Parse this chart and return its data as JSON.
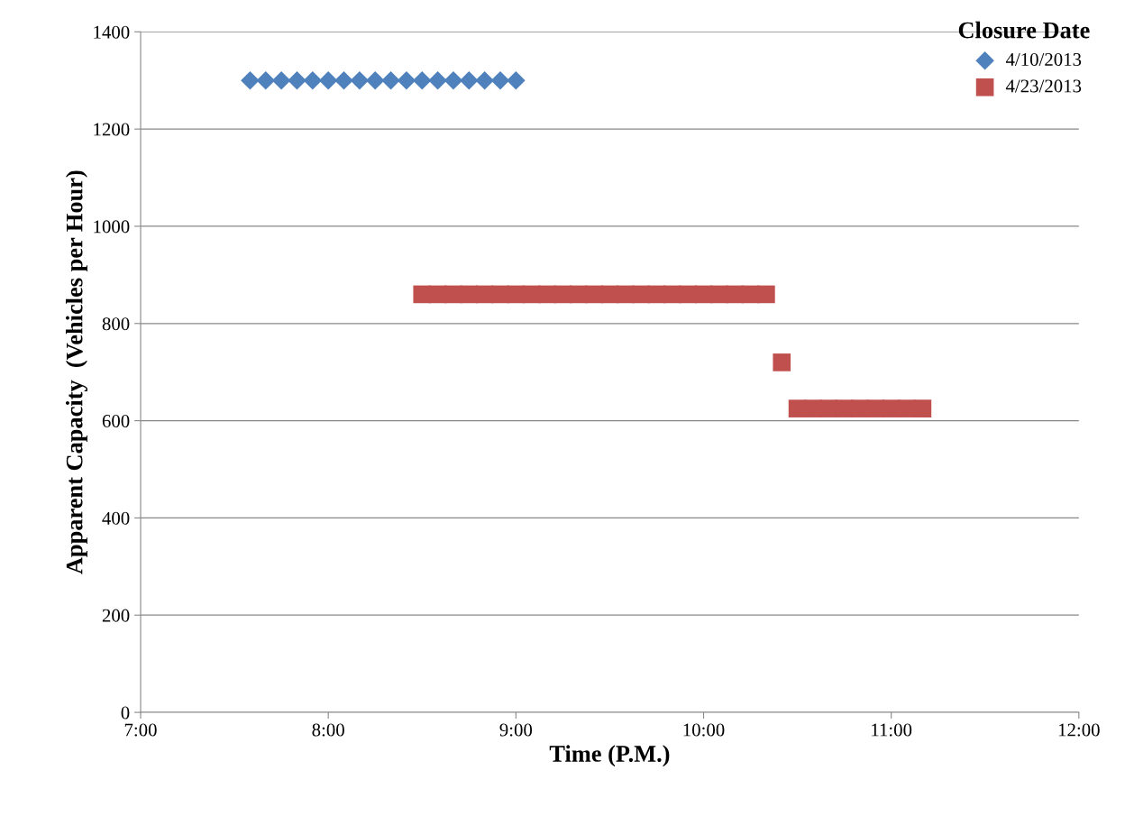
{
  "chart_data": {
    "type": "scatter",
    "xlabel": "Time (P.M.)",
    "ylabel": "Apparent Capacity  (Vehicles per Hour)",
    "legend_title": "Closure Date",
    "legend": "top right",
    "grid": "y",
    "xlim": [
      7,
      12
    ],
    "xticks": [
      {
        "value": 7,
        "label": "7:00"
      },
      {
        "value": 8,
        "label": "8:00"
      },
      {
        "value": 9,
        "label": "9:00"
      },
      {
        "value": 10,
        "label": "10:00"
      },
      {
        "value": 11,
        "label": "11:00"
      },
      {
        "value": 12,
        "label": "12:00"
      }
    ],
    "ylim": [
      0,
      1400
    ],
    "yticks": [
      0,
      200,
      400,
      600,
      800,
      1000,
      1200,
      1400
    ],
    "series": [
      {
        "name": "4/10/2013",
        "color": "#4f81bd",
        "marker": "diamond",
        "x": [
          7.5833,
          7.6667,
          7.75,
          7.8333,
          7.9167,
          8,
          8.0833,
          8.1667,
          8.25,
          8.3333,
          8.4167,
          8.5,
          8.5833,
          8.6667,
          8.75,
          8.8333,
          8.9167,
          9
        ],
        "values": [
          1300,
          1300,
          1300,
          1300,
          1300,
          1300,
          1300,
          1300,
          1300,
          1300,
          1300,
          1300,
          1300,
          1300,
          1300,
          1300,
          1300,
          1300
        ]
      },
      {
        "name": "4/23/2013",
        "color": "#c0504d",
        "marker": "square",
        "x": [
          8.5,
          8.5833,
          8.6667,
          8.75,
          8.8333,
          8.9167,
          9,
          9.0833,
          9.1667,
          9.25,
          9.3333,
          9.4167,
          9.5,
          9.5833,
          9.6667,
          9.75,
          9.8333,
          9.9167,
          10,
          10.0833,
          10.1667,
          10.25,
          10.3333,
          10.4167,
          10.5,
          10.5833,
          10.6667,
          10.75,
          10.8333,
          10.9167,
          11,
          11.0833,
          11.1667
        ],
        "values": [
          860,
          860,
          860,
          860,
          860,
          860,
          860,
          860,
          860,
          860,
          860,
          860,
          860,
          860,
          860,
          860,
          860,
          860,
          860,
          860,
          860,
          860,
          860,
          720,
          625,
          625,
          625,
          625,
          625,
          625,
          625,
          625,
          625
        ]
      }
    ]
  }
}
